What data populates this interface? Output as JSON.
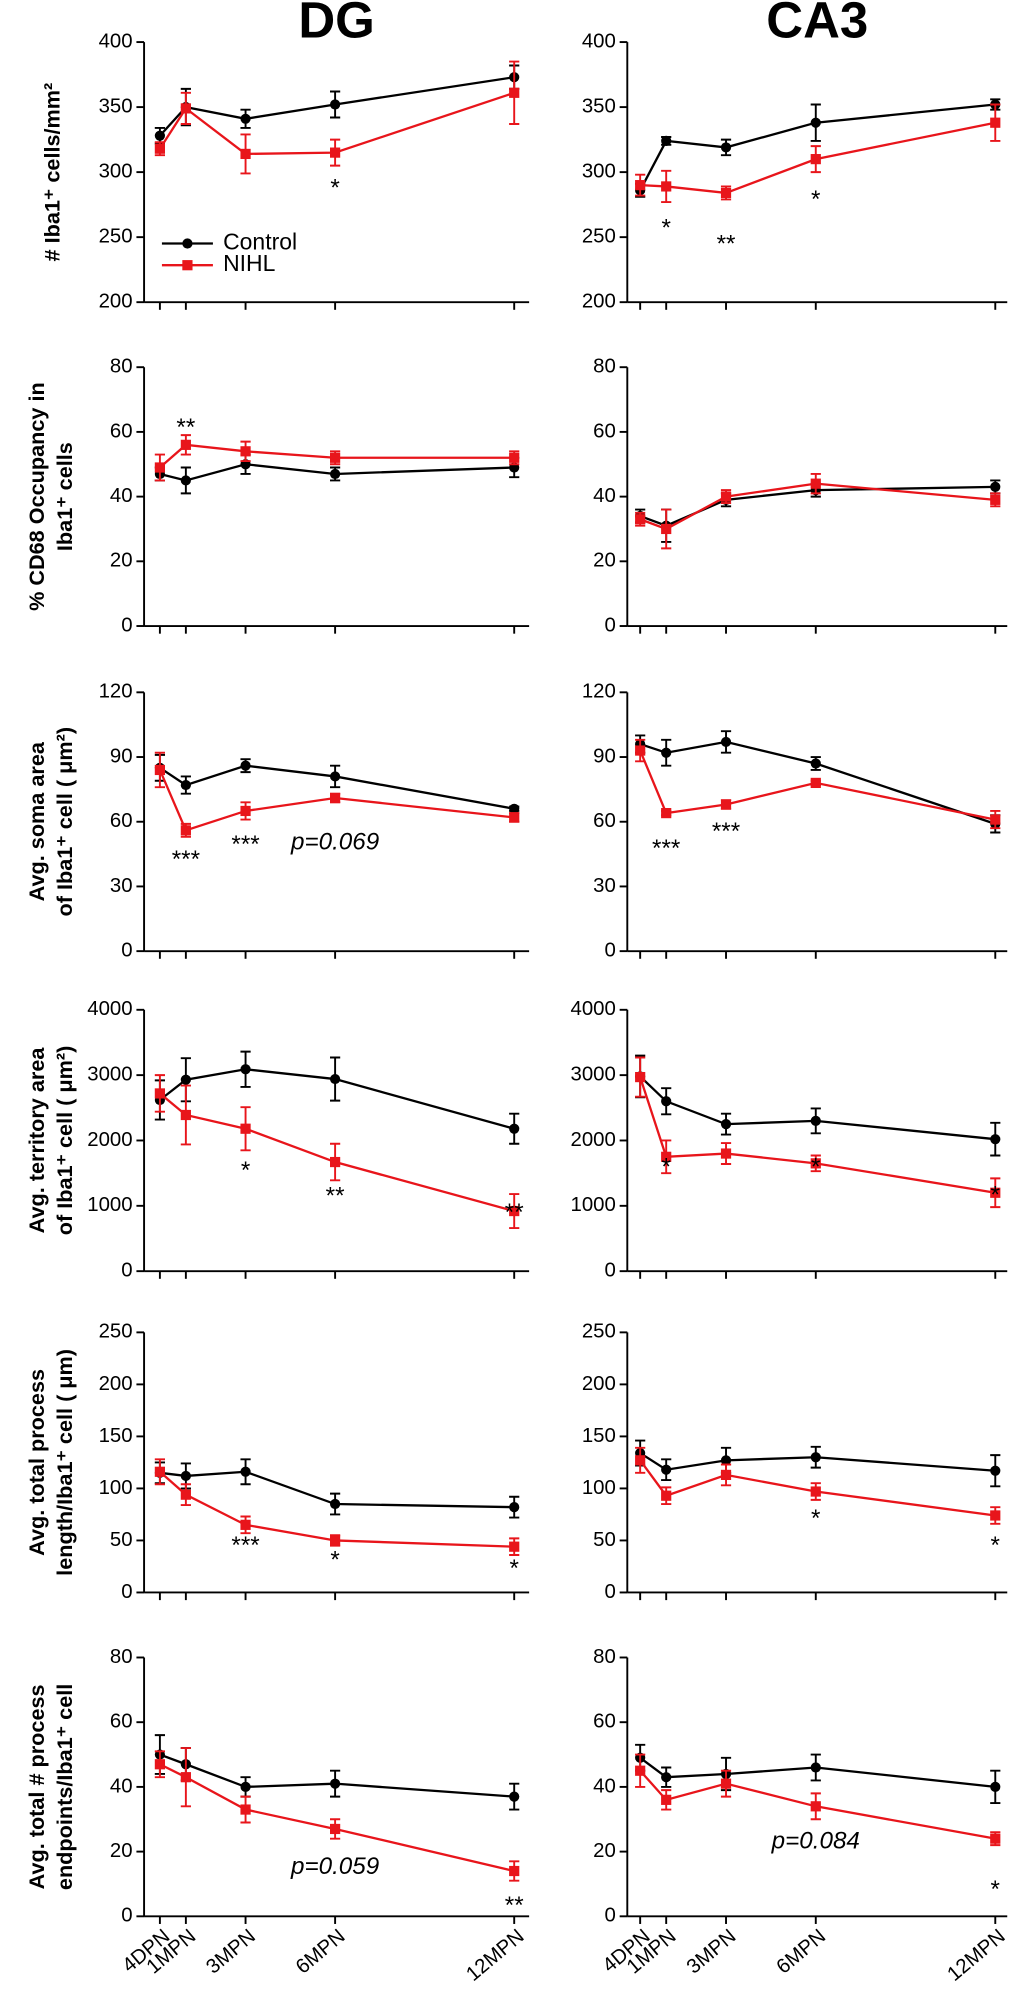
{
  "chart_data": [
    {
      "type": "line",
      "title": "DG",
      "ylabel": [
        "# Iba1⁺ cells/mm²"
      ],
      "legend": "lower left",
      "x": [
        0.13,
        1,
        3,
        6,
        12
      ],
      "xlim": [
        -0.4,
        12.5
      ],
      "xticks": [
        0.13,
        1,
        3,
        6,
        12
      ],
      "ylim": [
        200,
        400
      ],
      "yticks": [
        200,
        250,
        300,
        350,
        400
      ],
      "series": [
        {
          "name": "Control",
          "color": "#000000",
          "marker": "circle",
          "values": [
            328,
            350,
            341,
            352,
            373
          ],
          "errors": [
            6,
            14,
            7,
            10,
            9
          ]
        },
        {
          "name": "NIHL",
          "color": "#e8151b",
          "marker": "square",
          "values": [
            318,
            349,
            314,
            315,
            361
          ],
          "errors": [
            5,
            12,
            15,
            10,
            24
          ]
        }
      ],
      "annotations": [
        {
          "text": "*",
          "x": 6,
          "y": 287
        }
      ]
    },
    {
      "type": "line",
      "title": "CA3",
      "x": [
        0.13,
        1,
        3,
        6,
        12
      ],
      "xlim": [
        -0.3,
        12.4
      ],
      "xticks": [
        0.13,
        1,
        3,
        6,
        12
      ],
      "ylim": [
        200,
        400
      ],
      "yticks": [
        200,
        250,
        300,
        350,
        400
      ],
      "series": [
        {
          "name": "Control",
          "color": "#000000",
          "marker": "circle",
          "values": [
            286,
            324,
            319,
            338,
            352
          ],
          "errors": [
            5,
            3,
            6,
            14,
            4
          ]
        },
        {
          "name": "NIHL",
          "color": "#e8151b",
          "marker": "square",
          "values": [
            290,
            289,
            284,
            310,
            338
          ],
          "errors": [
            8,
            12,
            5,
            10,
            14
          ]
        }
      ],
      "annotations": [
        {
          "text": "*",
          "x": 1,
          "y": 256
        },
        {
          "text": "**",
          "x": 3,
          "y": 244
        },
        {
          "text": "*",
          "x": 6,
          "y": 278
        }
      ]
    },
    {
      "type": "line",
      "ylabel": [
        "% CD68 Occupancy in",
        "Iba1⁺ cells"
      ],
      "x": [
        0.13,
        1,
        3,
        6,
        12
      ],
      "xlim": [
        -0.4,
        12.5
      ],
      "xticks": [
        0.13,
        1,
        3,
        6,
        12
      ],
      "ylim": [
        0,
        80
      ],
      "yticks": [
        0,
        20,
        40,
        60,
        80
      ],
      "series": [
        {
          "name": "Control",
          "color": "#000000",
          "marker": "circle",
          "values": [
            47,
            45,
            50,
            47,
            49
          ],
          "errors": [
            2,
            4,
            3,
            2,
            3
          ]
        },
        {
          "name": "NIHL",
          "color": "#e8151b",
          "marker": "square",
          "values": [
            49,
            56,
            54,
            52,
            52
          ],
          "errors": [
            4,
            3,
            3,
            2,
            2
          ]
        }
      ],
      "annotations": [
        {
          "text": "**",
          "x": 1,
          "y": 61
        }
      ]
    },
    {
      "type": "line",
      "x": [
        0.13,
        1,
        3,
        6,
        12
      ],
      "xlim": [
        -0.3,
        12.4
      ],
      "xticks": [
        0.13,
        1,
        3,
        6,
        12
      ],
      "ylim": [
        0,
        80
      ],
      "yticks": [
        0,
        20,
        40,
        60,
        80
      ],
      "series": [
        {
          "name": "Control",
          "color": "#000000",
          "marker": "circle",
          "values": [
            34,
            31,
            39,
            42,
            43
          ],
          "errors": [
            2,
            5,
            2,
            2,
            2
          ]
        },
        {
          "name": "NIHL",
          "color": "#e8151b",
          "marker": "square",
          "values": [
            33,
            30,
            40,
            44,
            39
          ],
          "errors": [
            2,
            6,
            2,
            3,
            2
          ]
        }
      ],
      "annotations": []
    },
    {
      "type": "line",
      "ylabel": [
        "Avg. soma area",
        "of  Iba1⁺ cell  ( μm²)"
      ],
      "x": [
        0.13,
        1,
        3,
        6,
        12
      ],
      "xlim": [
        -0.4,
        12.5
      ],
      "xticks": [
        0.13,
        1,
        3,
        6,
        12
      ],
      "ylim": [
        0,
        120
      ],
      "yticks": [
        0,
        30,
        60,
        90,
        120
      ],
      "series": [
        {
          "name": "Control",
          "color": "#000000",
          "marker": "circle",
          "values": [
            85,
            77,
            86,
            81,
            66
          ],
          "errors": [
            6,
            4,
            3,
            5,
            1
          ]
        },
        {
          "name": "NIHL",
          "color": "#e8151b",
          "marker": "square",
          "values": [
            84,
            56,
            65,
            71,
            62
          ],
          "errors": [
            8,
            3,
            4,
            2,
            2
          ]
        }
      ],
      "annotations": [
        {
          "text": "***",
          "x": 1,
          "y": 42
        },
        {
          "text": "***",
          "x": 3,
          "y": 49
        },
        {
          "text": "p=0.069",
          "x": 6,
          "y": 50
        }
      ]
    },
    {
      "type": "line",
      "x": [
        0.13,
        1,
        3,
        6,
        12
      ],
      "xlim": [
        -0.3,
        12.4
      ],
      "xticks": [
        0.13,
        1,
        3,
        6,
        12
      ],
      "ylim": [
        0,
        120
      ],
      "yticks": [
        0,
        30,
        60,
        90,
        120
      ],
      "series": [
        {
          "name": "Control",
          "color": "#000000",
          "marker": "circle",
          "values": [
            96,
            92,
            97,
            87,
            59
          ],
          "errors": [
            4,
            6,
            5,
            3,
            4
          ]
        },
        {
          "name": "NIHL",
          "color": "#e8151b",
          "marker": "square",
          "values": [
            93,
            64,
            68,
            78,
            61
          ],
          "errors": [
            5,
            1,
            2,
            1,
            4
          ]
        }
      ],
      "annotations": [
        {
          "text": "***",
          "x": 1,
          "y": 47
        },
        {
          "text": "***",
          "x": 3,
          "y": 55
        }
      ]
    },
    {
      "type": "line",
      "ylabel": [
        "Avg. territory area",
        "of Iba1⁺ cell ( μm²)"
      ],
      "x": [
        0.13,
        1,
        3,
        6,
        12
      ],
      "xlim": [
        -0.4,
        12.5
      ],
      "xticks": [
        0.13,
        1,
        3,
        6,
        12
      ],
      "ylim": [
        0,
        4000
      ],
      "yticks": [
        0,
        1000,
        2000,
        3000,
        4000
      ],
      "series": [
        {
          "name": "Control",
          "color": "#000000",
          "marker": "circle",
          "values": [
            2620,
            2930,
            3090,
            2940,
            2180
          ],
          "errors": [
            300,
            330,
            270,
            330,
            230
          ]
        },
        {
          "name": "NIHL",
          "color": "#e8151b",
          "marker": "square",
          "values": [
            2720,
            2390,
            2180,
            1670,
            920
          ],
          "errors": [
            280,
            450,
            330,
            280,
            260
          ]
        }
      ],
      "annotations": [
        {
          "text": "*",
          "x": 3,
          "y": 1520
        },
        {
          "text": "**",
          "x": 6,
          "y": 1130
        },
        {
          "text": "**",
          "x": 12,
          "y": 880
        }
      ]
    },
    {
      "type": "line",
      "x": [
        0.13,
        1,
        3,
        6,
        12
      ],
      "xlim": [
        -0.3,
        12.4
      ],
      "xticks": [
        0.13,
        1,
        3,
        6,
        12
      ],
      "ylim": [
        0,
        4000
      ],
      "yticks": [
        0,
        1000,
        2000,
        3000,
        4000
      ],
      "series": [
        {
          "name": "Control",
          "color": "#000000",
          "marker": "circle",
          "values": [
            2980,
            2600,
            2250,
            2300,
            2020
          ],
          "errors": [
            320,
            200,
            160,
            190,
            250
          ]
        },
        {
          "name": "NIHL",
          "color": "#e8151b",
          "marker": "square",
          "values": [
            2970,
            1750,
            1800,
            1650,
            1200
          ],
          "errors": [
            300,
            250,
            160,
            120,
            220
          ]
        }
      ],
      "annotations": [
        {
          "text": "*",
          "x": 1,
          "y": 1580
        },
        {
          "text": "*",
          "x": 6,
          "y": 1580
        },
        {
          "text": "*",
          "x": 12,
          "y": 1150
        }
      ]
    },
    {
      "type": "line",
      "ylabel": [
        "Avg. total process",
        "length/Iba1⁺ cell ( μm)"
      ],
      "x": [
        0.13,
        1,
        3,
        6,
        12
      ],
      "xlim": [
        -0.4,
        12.5
      ],
      "xticks": [
        0.13,
        1,
        3,
        6,
        12
      ],
      "ylim": [
        0,
        250
      ],
      "yticks": [
        0,
        50,
        100,
        150,
        200,
        250
      ],
      "series": [
        {
          "name": "Control",
          "color": "#000000",
          "marker": "circle",
          "values": [
            115,
            112,
            116,
            85,
            82
          ],
          "errors": [
            10,
            12,
            12,
            10,
            10
          ]
        },
        {
          "name": "NIHL",
          "color": "#e8151b",
          "marker": "square",
          "values": [
            116,
            94,
            65,
            50,
            44
          ],
          "errors": [
            12,
            10,
            8,
            5,
            8
          ]
        }
      ],
      "annotations": [
        {
          "text": "***",
          "x": 3,
          "y": 44
        },
        {
          "text": "*",
          "x": 6,
          "y": 30
        },
        {
          "text": "*",
          "x": 12,
          "y": 22
        }
      ]
    },
    {
      "type": "line",
      "x": [
        0.13,
        1,
        3,
        6,
        12
      ],
      "xlim": [
        -0.3,
        12.4
      ],
      "xticks": [
        0.13,
        1,
        3,
        6,
        12
      ],
      "ylim": [
        0,
        250
      ],
      "yticks": [
        0,
        50,
        100,
        150,
        200,
        250
      ],
      "series": [
        {
          "name": "Control",
          "color": "#000000",
          "marker": "circle",
          "values": [
            134,
            118,
            127,
            130,
            117
          ],
          "errors": [
            12,
            10,
            12,
            10,
            15
          ]
        },
        {
          "name": "NIHL",
          "color": "#e8151b",
          "marker": "square",
          "values": [
            127,
            93,
            113,
            97,
            74
          ],
          "errors": [
            12,
            8,
            10,
            8,
            8
          ]
        }
      ],
      "annotations": [
        {
          "text": "*",
          "x": 6,
          "y": 70
        },
        {
          "text": "*",
          "x": 12,
          "y": 44
        }
      ]
    },
    {
      "type": "line",
      "ylabel": [
        "Avg. total # process",
        "endpoints/Iba1⁺ cell"
      ],
      "x": [
        0.13,
        1,
        3,
        6,
        12
      ],
      "xlim": [
        -0.4,
        12.5
      ],
      "xticks": [
        {
          "value": 0.13,
          "label": "4DPN"
        },
        {
          "value": 1,
          "label": "1MPN"
        },
        {
          "value": 3,
          "label": "3MPN"
        },
        {
          "value": 6,
          "label": "6MPN"
        },
        {
          "value": 12,
          "label": "12MPN"
        }
      ],
      "ylim": [
        0,
        80
      ],
      "yticks": [
        0,
        20,
        40,
        60,
        80
      ],
      "series": [
        {
          "name": "Control",
          "color": "#000000",
          "marker": "circle",
          "values": [
            50,
            47,
            40,
            41,
            37
          ],
          "errors": [
            6,
            5,
            3,
            4,
            4
          ]
        },
        {
          "name": "NIHL",
          "color": "#e8151b",
          "marker": "square",
          "values": [
            47,
            43,
            33,
            27,
            14
          ],
          "errors": [
            4,
            9,
            4,
            3,
            3
          ]
        }
      ],
      "annotations": [
        {
          "text": "p=0.059",
          "x": 6,
          "y": 15
        },
        {
          "text": "**",
          "x": 12,
          "y": 3
        }
      ]
    },
    {
      "type": "line",
      "x": [
        0.13,
        1,
        3,
        6,
        12
      ],
      "xlim": [
        -0.3,
        12.4
      ],
      "xticks": [
        {
          "value": 0.13,
          "label": "4DPN"
        },
        {
          "value": 1,
          "label": "1MPN"
        },
        {
          "value": 3,
          "label": "3MPN"
        },
        {
          "value": 6,
          "label": "6MPN"
        },
        {
          "value": 12,
          "label": "12MPN"
        }
      ],
      "ylim": [
        0,
        80
      ],
      "yticks": [
        0,
        20,
        40,
        60,
        80
      ],
      "series": [
        {
          "name": "Control",
          "color": "#000000",
          "marker": "circle",
          "values": [
            49,
            43,
            44,
            46,
            40
          ],
          "errors": [
            4,
            3,
            5,
            4,
            5
          ]
        },
        {
          "name": "NIHL",
          "color": "#e8151b",
          "marker": "square",
          "values": [
            45,
            36,
            41,
            34,
            24
          ],
          "errors": [
            5,
            3,
            4,
            4,
            2
          ]
        }
      ],
      "annotations": [
        {
          "text": "p=0.084",
          "x": 6,
          "y": 23
        },
        {
          "text": "*",
          "x": 12,
          "y": 8
        }
      ]
    }
  ]
}
